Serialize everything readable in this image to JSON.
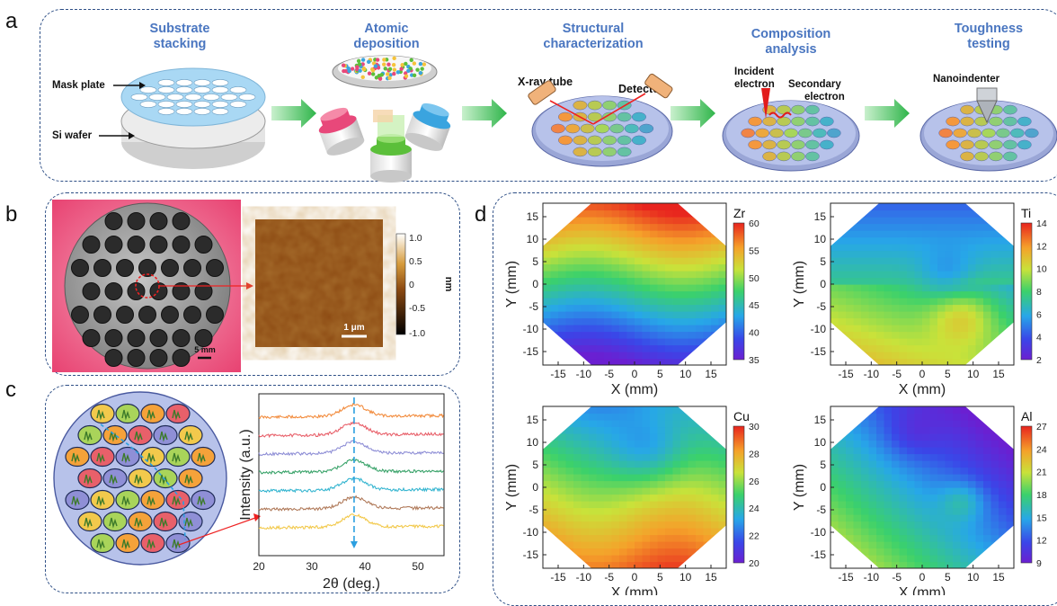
{
  "panels": {
    "a": "a",
    "b": "b",
    "c": "c",
    "d": "d"
  },
  "process_steps": [
    {
      "line1": "Substrate",
      "line2": "stacking"
    },
    {
      "line1": "Atomic",
      "line2": "deposition"
    },
    {
      "line1": "Structural",
      "line2": "characterization"
    },
    {
      "line1": "Composition",
      "line2": "analysis"
    },
    {
      "line1": "Toughness",
      "line2": "testing"
    }
  ],
  "labels": {
    "mask_plate": "Mask plate",
    "si_wafer": "Si wafer",
    "xray_tube": "X-ray tube",
    "detector": "Detector",
    "incident": "Incident",
    "electron": "electron",
    "secondary": "Secondary",
    "nanoindenter": "Nanoindenter",
    "scale_5mm": "5 mm",
    "scale_1um": "1 μm",
    "afm_unit": "nm"
  },
  "afm_colorbar_ticks": [
    "1.0",
    "0.5",
    "0",
    "-0.5",
    "-1.0"
  ],
  "colors": {
    "accent_blue": "#4a76c0",
    "dash": "#2e4f86",
    "arrow_green": "#3dbb4e",
    "afm": "#8c4a12",
    "photo_bg": "#e8446a"
  },
  "chart_data": [
    {
      "type": "line",
      "xlabel": "2θ (deg.)",
      "ylabel": "Intensity (a.u.)",
      "xlim": [
        20,
        55
      ],
      "xticks": [
        "20",
        "30",
        "40",
        "50"
      ],
      "peak_x": 38,
      "series_colors": [
        "#f28b3c",
        "#e8606a",
        "#8f8fd6",
        "#3aa36a",
        "#35b5d0",
        "#b07a5a",
        "#f2c94c"
      ]
    },
    {
      "type": "heatmap",
      "element": "Zr",
      "xlabel": "X (mm)",
      "ylabel": "Y (mm)",
      "xticks": [
        "-15",
        "-10",
        "-5",
        "0",
        "5",
        "10",
        "15"
      ],
      "yticks": [
        "15",
        "10",
        "5",
        "0",
        "-5",
        "-10",
        "-15"
      ],
      "cbar_ticks": [
        "60",
        "55",
        "50",
        "45",
        "40",
        "35"
      ]
    },
    {
      "type": "heatmap",
      "element": "Ti",
      "xlabel": "X (mm)",
      "ylabel": "Y (mm)",
      "xticks": [
        "-15",
        "-10",
        "-5",
        "0",
        "5",
        "10",
        "15"
      ],
      "yticks": [
        "15",
        "10",
        "5",
        "0",
        "-5",
        "-10",
        "-15"
      ],
      "cbar_ticks": [
        "14",
        "12",
        "10",
        "8",
        "6",
        "4",
        "2"
      ]
    },
    {
      "type": "heatmap",
      "element": "Cu",
      "xlabel": "X (mm)",
      "ylabel": "Y (mm)",
      "xticks": [
        "-15",
        "-10",
        "-5",
        "0",
        "5",
        "10",
        "15"
      ],
      "yticks": [
        "15",
        "10",
        "5",
        "0",
        "-5",
        "-10",
        "-15"
      ],
      "cbar_ticks": [
        "30",
        "28",
        "26",
        "24",
        "22",
        "20"
      ]
    },
    {
      "type": "heatmap",
      "element": "Al",
      "xlabel": "X (mm)",
      "ylabel": "Y (mm)",
      "xticks": [
        "-15",
        "-10",
        "-5",
        "0",
        "5",
        "10",
        "15"
      ],
      "yticks": [
        "15",
        "10",
        "5",
        "0",
        "-5",
        "-10",
        "-15"
      ],
      "cbar_ticks": [
        "27",
        "24",
        "21",
        "18",
        "15",
        "12",
        "9"
      ]
    }
  ]
}
